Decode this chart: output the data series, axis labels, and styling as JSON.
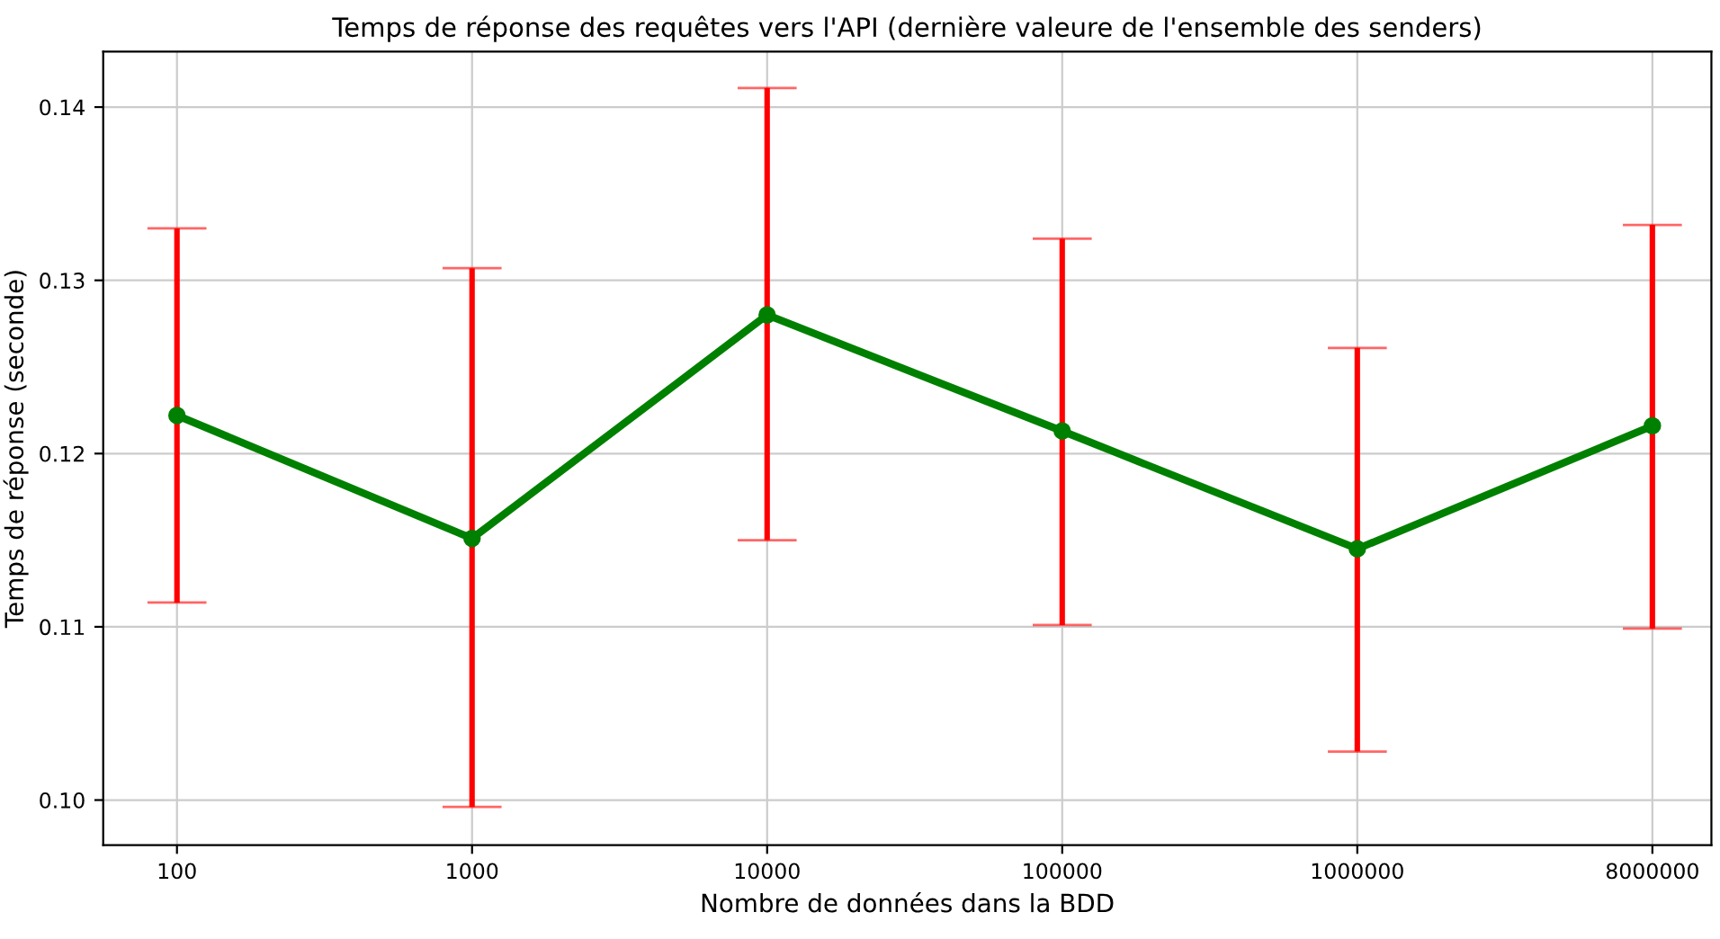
{
  "chart_data": {
    "type": "line",
    "title": "Temps de réponse des requêtes vers l'API (dernière valeure de l'ensemble des senders)",
    "xlabel": "Nombre de données dans la BDD",
    "ylabel": "Temps de réponse (seconde)",
    "categories": [
      "100",
      "1000",
      "10000",
      "100000",
      "1000000",
      "8000000"
    ],
    "series": [
      {
        "color": "#008000",
        "values": [
          0.1222,
          0.1151,
          0.128,
          0.1213,
          0.1145,
          0.1216
        ],
        "errors": [
          [
            0.1114,
            0.133
          ],
          [
            0.0996,
            0.1307
          ],
          [
            0.115,
            0.1411
          ],
          [
            0.1101,
            0.1324
          ],
          [
            0.1028,
            0.1261
          ],
          [
            0.1099,
            0.1332
          ]
        ]
      }
    ],
    "ylim": [
      0.0974,
      0.1432
    ],
    "yticks": [
      {
        "value": 0.1,
        "label": "0.10"
      },
      0.11,
      0.12,
      0.13,
      0.14
    ],
    "grid": true,
    "marker": "circle",
    "line_style": "solid",
    "legend": false
  }
}
